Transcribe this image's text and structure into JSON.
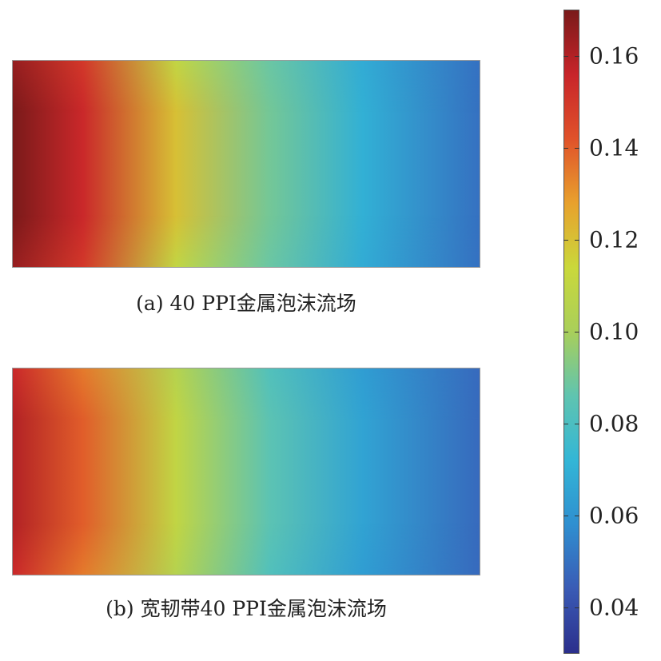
{
  "chart_data": [
    {
      "type": "heatmap",
      "caption": "(a) 40 PPI金属泡沫流场",
      "field": {
        "x_fraction": [
          0.0,
          0.15,
          0.35,
          0.55,
          0.75,
          1.0
        ],
        "center_values": [
          0.17,
          0.155,
          0.12,
          0.09,
          0.07,
          0.05
        ],
        "edge_values": [
          0.165,
          0.15,
          0.11,
          0.088,
          0.068,
          0.05
        ]
      }
    },
    {
      "type": "heatmap",
      "caption": "(b) 宽韧带40 PPI金属泡沫流场",
      "field": {
        "x_fraction": [
          0.0,
          0.15,
          0.35,
          0.55,
          0.75,
          1.0
        ],
        "center_values": [
          0.16,
          0.14,
          0.11,
          0.085,
          0.065,
          0.048
        ],
        "edge_values": [
          0.155,
          0.135,
          0.105,
          0.082,
          0.063,
          0.048
        ]
      }
    }
  ],
  "colorbar": {
    "range": [
      0.03,
      0.17
    ],
    "ticks": [
      "0.16",
      "0.14",
      "0.12",
      "0.10",
      "0.08",
      "0.06",
      "0.04"
    ],
    "tick_values": [
      0.16,
      0.14,
      0.12,
      0.1,
      0.08,
      0.06,
      0.04
    ],
    "colormap": [
      "#2b2f8c",
      "#3a5bb5",
      "#2f8fd0",
      "#33b6d6",
      "#5fc4b0",
      "#a9cf5a",
      "#cad83b",
      "#e8a12d",
      "#e0522a",
      "#c8252a",
      "#7a1a1a"
    ]
  }
}
